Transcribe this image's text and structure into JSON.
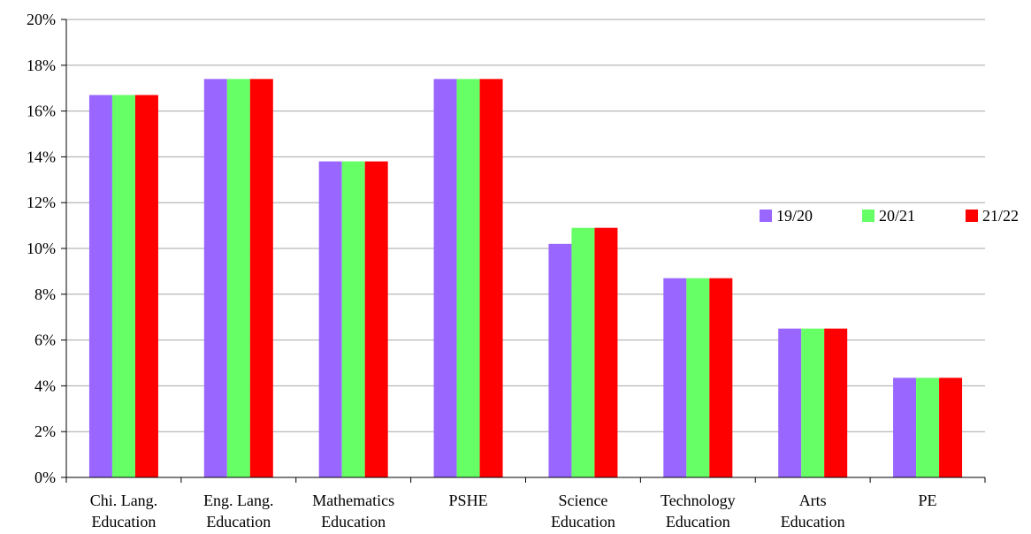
{
  "chart_data": {
    "type": "bar",
    "categories": [
      [
        "Chi. Lang.",
        "Education"
      ],
      [
        "Eng. Lang.",
        "Education"
      ],
      [
        "Mathematics",
        "Education"
      ],
      [
        "PSHE"
      ],
      [
        "Science",
        "Education"
      ],
      [
        "Technology",
        "Education"
      ],
      [
        "Arts",
        "Education"
      ],
      [
        "PE"
      ]
    ],
    "series": [
      {
        "name": "19/20",
        "color": "#9966ff",
        "values": [
          16.7,
          17.4,
          13.8,
          17.4,
          10.2,
          8.7,
          6.5,
          4.35
        ]
      },
      {
        "name": "20/21",
        "color": "#66ff66",
        "values": [
          16.7,
          17.4,
          13.8,
          17.4,
          10.9,
          8.7,
          6.5,
          4.35
        ]
      },
      {
        "name": "21/22",
        "color": "#ff0000",
        "values": [
          16.7,
          17.4,
          13.8,
          17.4,
          10.9,
          8.7,
          6.5,
          4.35
        ]
      }
    ],
    "yticks": [
      "0%",
      "2%",
      "4%",
      "6%",
      "8%",
      "10%",
      "12%",
      "14%",
      "16%",
      "18%",
      "20%"
    ],
    "ylim": [
      0,
      20
    ],
    "grid": true,
    "legend": "right",
    "title": "",
    "xlabel": "",
    "ylabel": ""
  }
}
